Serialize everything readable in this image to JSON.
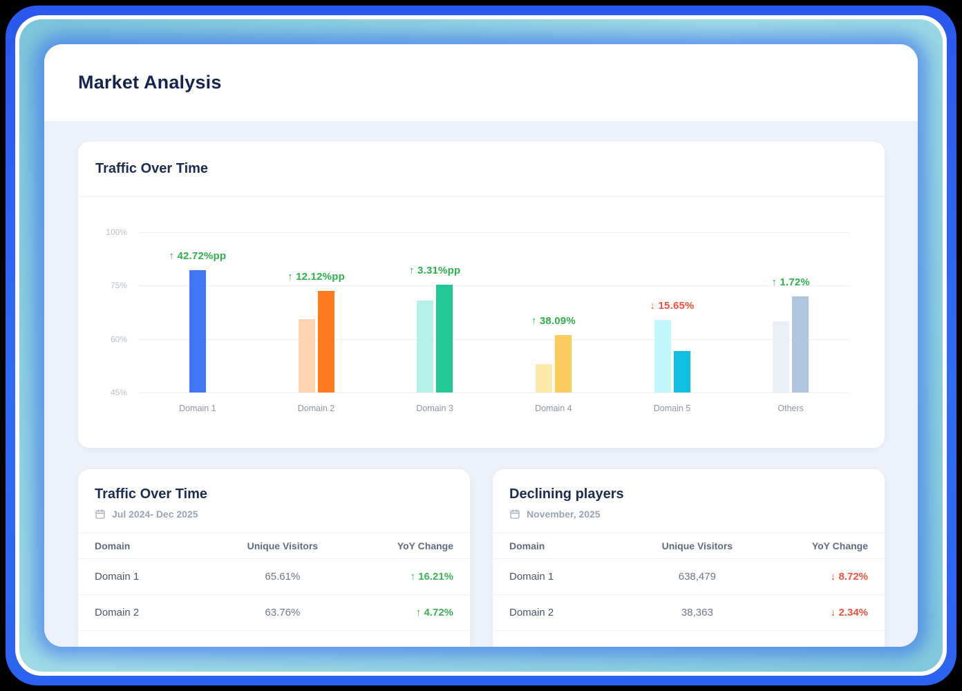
{
  "header": {
    "title": "Market Analysis"
  },
  "colors": {
    "frame_blue": "#2c5ef1",
    "frame_teal": "#8ed3de",
    "app_background": "#edf1fa",
    "green": "#2fb14b",
    "red": "#f4503d"
  },
  "chart_card": {
    "title": "Traffic Over Time"
  },
  "chart_data": {
    "type": "bar",
    "title": "Traffic Over Time",
    "categories": [
      "Domain 1",
      "Domain 2",
      "Domain 3",
      "Domain 4",
      "Domain 5",
      "Others"
    ],
    "series": [
      {
        "name": "previous-period",
        "values": [
          null,
          65.5,
          70.7,
          53,
          65.3,
          64.9
        ]
      },
      {
        "name": "current-period",
        "values": [
          82,
          73.5,
          75.2,
          61,
          56.7,
          71.9
        ]
      }
    ],
    "bar_colors": [
      {
        "previous": null,
        "current": "#4274f6"
      },
      {
        "previous": "#fed3b2",
        "current": "#fd7a1f"
      },
      {
        "previous": "#b5f0e7",
        "current": "#21c795"
      },
      {
        "previous": "#fdeaa9",
        "current": "#f9cd5b"
      },
      {
        "previous": "#c3f7fc",
        "current": "#11bfe3"
      },
      {
        "previous": "#eaf0f5",
        "current": "#adc6de"
      }
    ],
    "annotations": [
      {
        "text": "↑ 42.72%pp",
        "color": "green"
      },
      {
        "text": "↑ 12.12%pp",
        "color": "green"
      },
      {
        "text": "↑ 3.31%pp",
        "color": "green"
      },
      {
        "text": "↑ 38.09%",
        "color": "green"
      },
      {
        "text": "↓ 15.65%",
        "color": "red"
      },
      {
        "text": "↑ 1.72%",
        "color": "green"
      }
    ],
    "y_ticks": [
      "100%",
      "75%",
      "60%",
      "45%"
    ],
    "y_tick_values": [
      100,
      75,
      60,
      45
    ],
    "baseline_value": 45,
    "grid": true,
    "legend_position": "none"
  },
  "icons": {
    "date": "calendar-icon"
  },
  "tables": [
    {
      "title": "Traffic Over Time",
      "date_label": "Jul 2024- Dec 2025",
      "columns": [
        "Domain",
        "Unique Visitors",
        "YoY Change"
      ],
      "rows": [
        {
          "domain": "Domain 1",
          "visitors": "65.61%",
          "change": "↑ 16.21%",
          "direction": "up"
        },
        {
          "domain": "Domain 2",
          "visitors": "63.76%",
          "change": "↑ 4.72%",
          "direction": "up"
        }
      ]
    },
    {
      "title": "Declining players",
      "date_label": "November, 2025",
      "columns": [
        "Domain",
        "Unique Visitors",
        "YoY Change"
      ],
      "rows": [
        {
          "domain": "Domain 1",
          "visitors": "638,479",
          "change": "↓ 8.72%",
          "direction": "down"
        },
        {
          "domain": "Domain 2",
          "visitors": "38,363",
          "change": "↓ 2.34%",
          "direction": "down"
        }
      ]
    }
  ]
}
